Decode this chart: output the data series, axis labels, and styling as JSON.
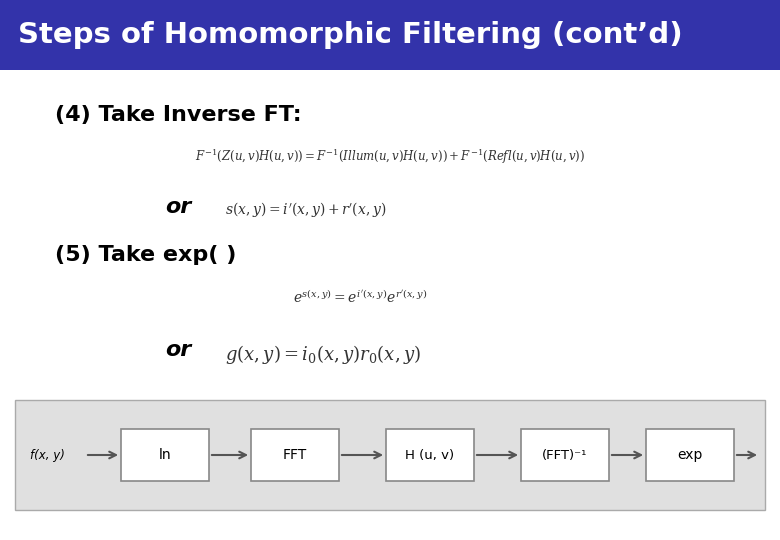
{
  "title": "Steps of Homomorphic Filtering (cont’d)",
  "title_bg": "#3333aa",
  "title_color": "#ffffff",
  "bg_color": "#ffffff",
  "step4_label": "(4) Take Inverse FT:",
  "step5_label": "(5) Take exp( )",
  "or_label": "or",
  "diagram_boxes": [
    "ln",
    "FFT",
    "H (u, v)",
    "(FFT)⁻¹",
    "exp"
  ],
  "diagram_input": "f(x, y)",
  "diagram_bg": "#e0e0e0",
  "diagram_box_bg": "#ffffff",
  "diagram_box_border": "#888888",
  "diagram_arrow_color": "#555555",
  "figsize": [
    7.8,
    5.4
  ],
  "dpi": 100
}
